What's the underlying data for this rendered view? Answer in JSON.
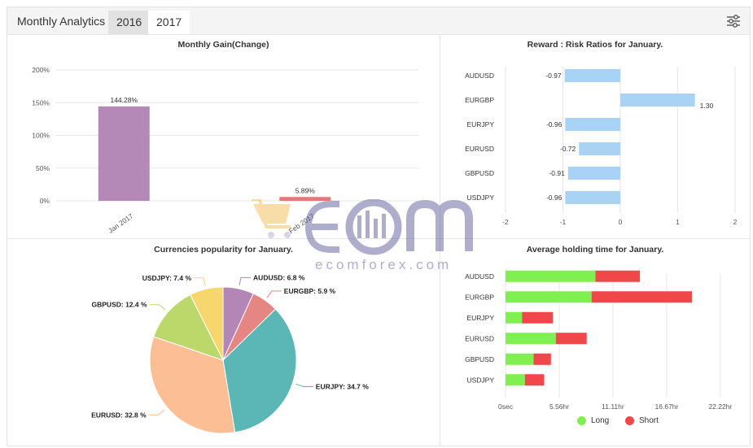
{
  "header": {
    "title": "Monthly Analytics",
    "tabs": [
      "2016",
      "2017"
    ],
    "active_tab": "2016"
  },
  "watermark": {
    "brand": "EOM",
    "domain": "ecomforex.com"
  },
  "chart_data": [
    {
      "type": "bar",
      "title": "Monthly Gain(Change)",
      "categories": [
        "Jan 2017",
        "Feb 2017"
      ],
      "values": [
        144.28,
        5.89
      ],
      "data_labels": [
        "144.28%",
        "5.89%"
      ],
      "colors": [
        "#b589b7",
        "#e07a7a"
      ],
      "ylim": [
        0,
        200
      ],
      "yticks": [
        0,
        50,
        100,
        150,
        200
      ],
      "ytick_labels": [
        "0%",
        "50%",
        "100%",
        "150%",
        "200%"
      ],
      "grid": true
    },
    {
      "type": "bar",
      "orientation": "horizontal",
      "title": "Reward : Risk Ratios for January.",
      "categories": [
        "AUDUSD",
        "EURGBP",
        "EURJPY",
        "EURUSD",
        "GBPUSD",
        "USDJPY"
      ],
      "values": [
        -0.97,
        1.3,
        -0.96,
        -0.72,
        -0.91,
        -0.96
      ],
      "data_labels": [
        "-0.97",
        "1.30",
        "-0.96",
        "-0.72",
        "-0.91",
        "-0.96"
      ],
      "color": "#a8d3f5",
      "xlim": [
        -2,
        2
      ],
      "xticks": [
        -2,
        -1,
        0,
        1,
        2
      ],
      "xtick_labels": [
        "-2",
        "-1",
        "0",
        "1",
        "2"
      ],
      "grid": true
    },
    {
      "type": "pie",
      "title": "Currencies popularity for January.",
      "slices": [
        {
          "name": "AUDUSD",
          "value": 6.8,
          "label": "AUDUSD: 6.8 %",
          "color": "#b386b6"
        },
        {
          "name": "EURGBP",
          "value": 5.9,
          "label": "EURGBP: 5.9 %",
          "color": "#e58683"
        },
        {
          "name": "EURJPY",
          "value": 34.7,
          "label": "EURJPY: 34.7 %",
          "color": "#5bb6b6"
        },
        {
          "name": "EURUSD",
          "value": 32.8,
          "label": "EURUSD: 32.8 %",
          "color": "#fcbe94"
        },
        {
          "name": "GBPUSD",
          "value": 12.4,
          "label": "GBPUSD: 12.4 %",
          "color": "#bcd86b"
        },
        {
          "name": "USDJPY",
          "value": 7.4,
          "label": "USDJPY: 7.4 %",
          "color": "#f8d66e"
        }
      ]
    },
    {
      "type": "bar",
      "orientation": "horizontal",
      "stacked": true,
      "title": "Average holding time for January.",
      "categories": [
        "AUDUSD",
        "EURGBP",
        "EURJPY",
        "EURUSD",
        "GBPUSD",
        "USDJPY"
      ],
      "series": [
        {
          "name": "Long",
          "color": "#7ff04f",
          "values": [
            9.3,
            8.9,
            1.7,
            5.2,
            2.9,
            2.0
          ]
        },
        {
          "name": "Short",
          "color": "#f2474a",
          "values": [
            4.6,
            10.4,
            3.2,
            3.2,
            1.8,
            2.0
          ]
        }
      ],
      "xlim": [
        0,
        24
      ],
      "xticks": [
        0,
        5.56,
        11.11,
        16.67,
        22.22
      ],
      "xtick_labels": [
        "0sec",
        "5.56hr",
        "11.11hr",
        "16.67hr",
        "22.22hr"
      ],
      "legend": "bottom",
      "grid": true
    }
  ]
}
